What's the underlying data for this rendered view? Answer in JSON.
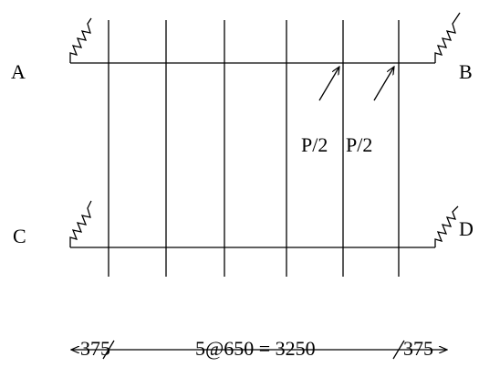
{
  "labels": {
    "a": "A",
    "b": "B",
    "c": "C",
    "d": "D"
  },
  "loads": [
    "P/2",
    "P/2"
  ],
  "dimensions": {
    "left": "375",
    "middle": "5@650 = 3250",
    "right": "375"
  }
}
